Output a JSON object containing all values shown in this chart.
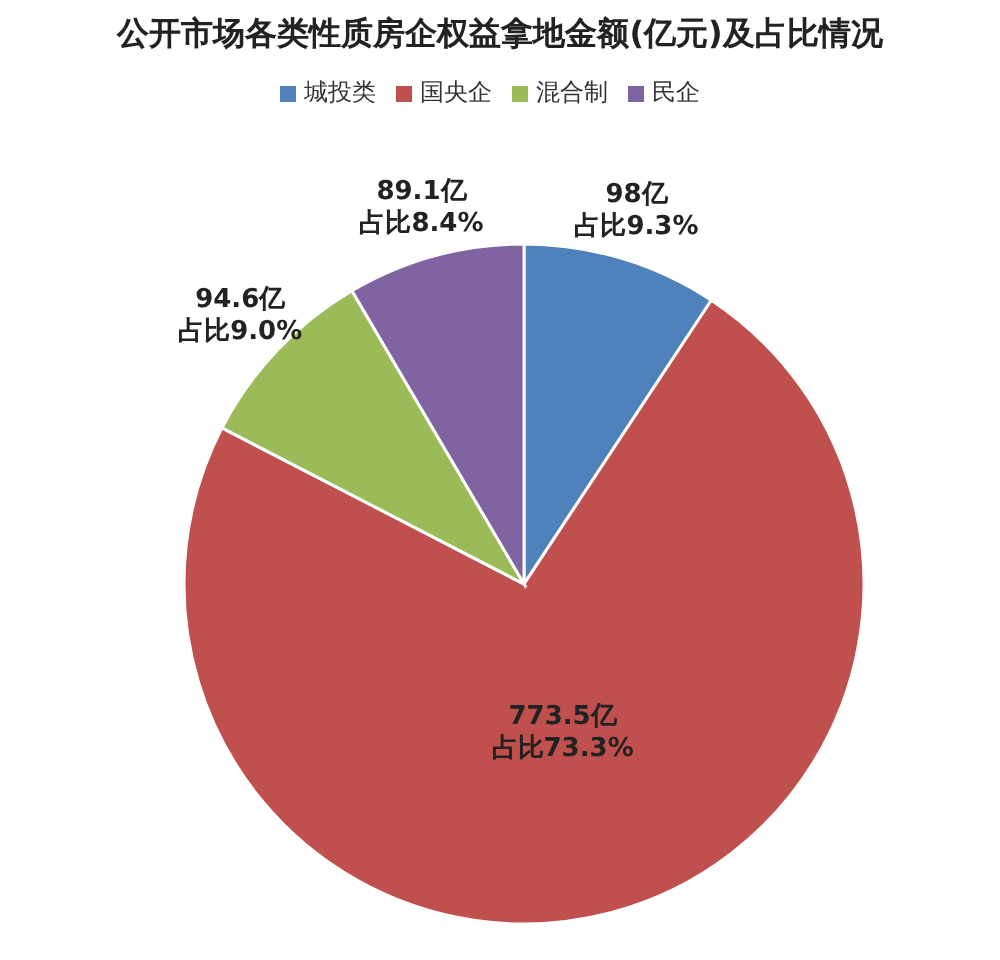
{
  "chart_data": {
    "type": "pie",
    "title": "公开市场各类性质房企权益拿地金额(亿元)及占比情况",
    "categories": [
      "城投类",
      "国央企",
      "混合制",
      "民企"
    ],
    "values": [
      98,
      773.5,
      94.6,
      89.1
    ],
    "colors": [
      "#4f81bd",
      "#c0504d",
      "#9bbb59",
      "#8064a2"
    ],
    "value_labels": [
      "98亿占比9.3%",
      "773.5亿占比73.3%",
      "94.6亿占比9.0%",
      "89.1亿占比8.4%"
    ],
    "legend": "top"
  }
}
